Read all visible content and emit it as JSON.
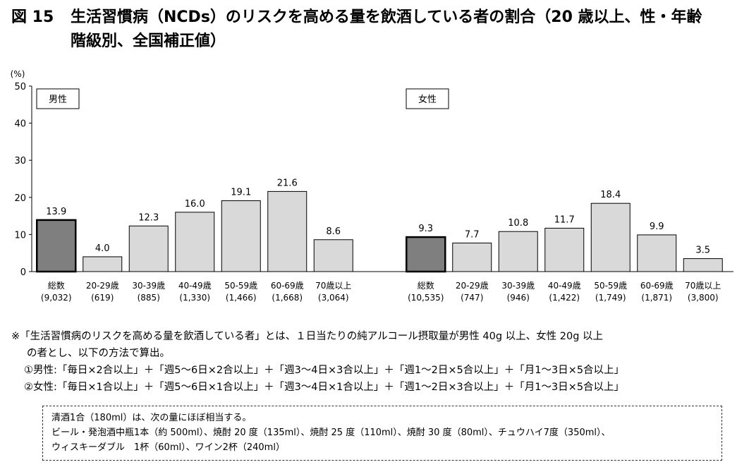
{
  "title": {
    "figure_number": "図 15",
    "line1": "生活習慣病（NCDs）のリスクを高める量を飲酒している者の割合（20 歳以上、性・年齢",
    "line2": "階級別、全国補正値）"
  },
  "chart_data": {
    "type": "bar",
    "ylabel": "(%)",
    "ylim": [
      0,
      50
    ],
    "yticks": [
      0,
      10,
      20,
      30,
      40,
      50
    ],
    "grid": false,
    "colors": {
      "total": "#7f7f7f",
      "age": "#d9d9d9",
      "edge": "#000000"
    },
    "panels": [
      {
        "name": "男性",
        "categories": [
          "総数",
          "20-29歳",
          "30-39歳",
          "40-49歳",
          "50-59歳",
          "60-69歳",
          "70歳以上"
        ],
        "n": [
          "(9,032)",
          "(619)",
          "(885)",
          "(1,330)",
          "(1,466)",
          "(1,668)",
          "(3,064)"
        ],
        "values": [
          13.9,
          4.0,
          12.3,
          16.0,
          19.1,
          21.6,
          8.6
        ],
        "value_labels": [
          "13.9",
          "4.0",
          "12.3",
          "16.0",
          "19.1",
          "21.6",
          "8.6"
        ]
      },
      {
        "name": "女性",
        "categories": [
          "総数",
          "20-29歳",
          "30-39歳",
          "40-49歳",
          "50-59歳",
          "60-69歳",
          "70歳以上"
        ],
        "n": [
          "(10,535)",
          "(747)",
          "(946)",
          "(1,422)",
          "(1,749)",
          "(1,871)",
          "(3,800)"
        ],
        "values": [
          9.3,
          7.7,
          10.8,
          11.7,
          18.4,
          9.9,
          3.5
        ],
        "value_labels": [
          "9.3",
          "7.7",
          "10.8",
          "11.7",
          "18.4",
          "9.9",
          "3.5"
        ]
      }
    ]
  },
  "notes": {
    "line1": "※「生活習慣病のリスクを高める量を飲酒している者」とは、１日当たりの純アルコール摂取量が男性 40g 以上、女性 20g 以上",
    "line2": "の者とし、以下の方法で算出。",
    "male": "①男性:「毎日×2合以上」＋「週5～6日×2合以上」＋「週3～4日×3合以上」＋「週1～2日×5合以上」＋「月1～3日×5合以上」",
    "female": "②女性:「毎日×1合以上」＋「週5～6日×1合以上」＋「週3～4日×1合以上」＋「週1～2日×3合以上」＋「月1～3日×5合以上」"
  },
  "box": {
    "line1": "清酒1合（180ml）は、次の量にほぼ相当する。",
    "line2": "ビール・発泡酒中瓶1本（約 500ml）、焼酎 20 度（135ml）、焼酎 25 度（110ml）、焼酎 30 度（80ml）、チュウハイ7度（350ml）、",
    "line3": "ウィスキーダブル　1杯（60ml）、ワイン2杯（240ml）"
  }
}
